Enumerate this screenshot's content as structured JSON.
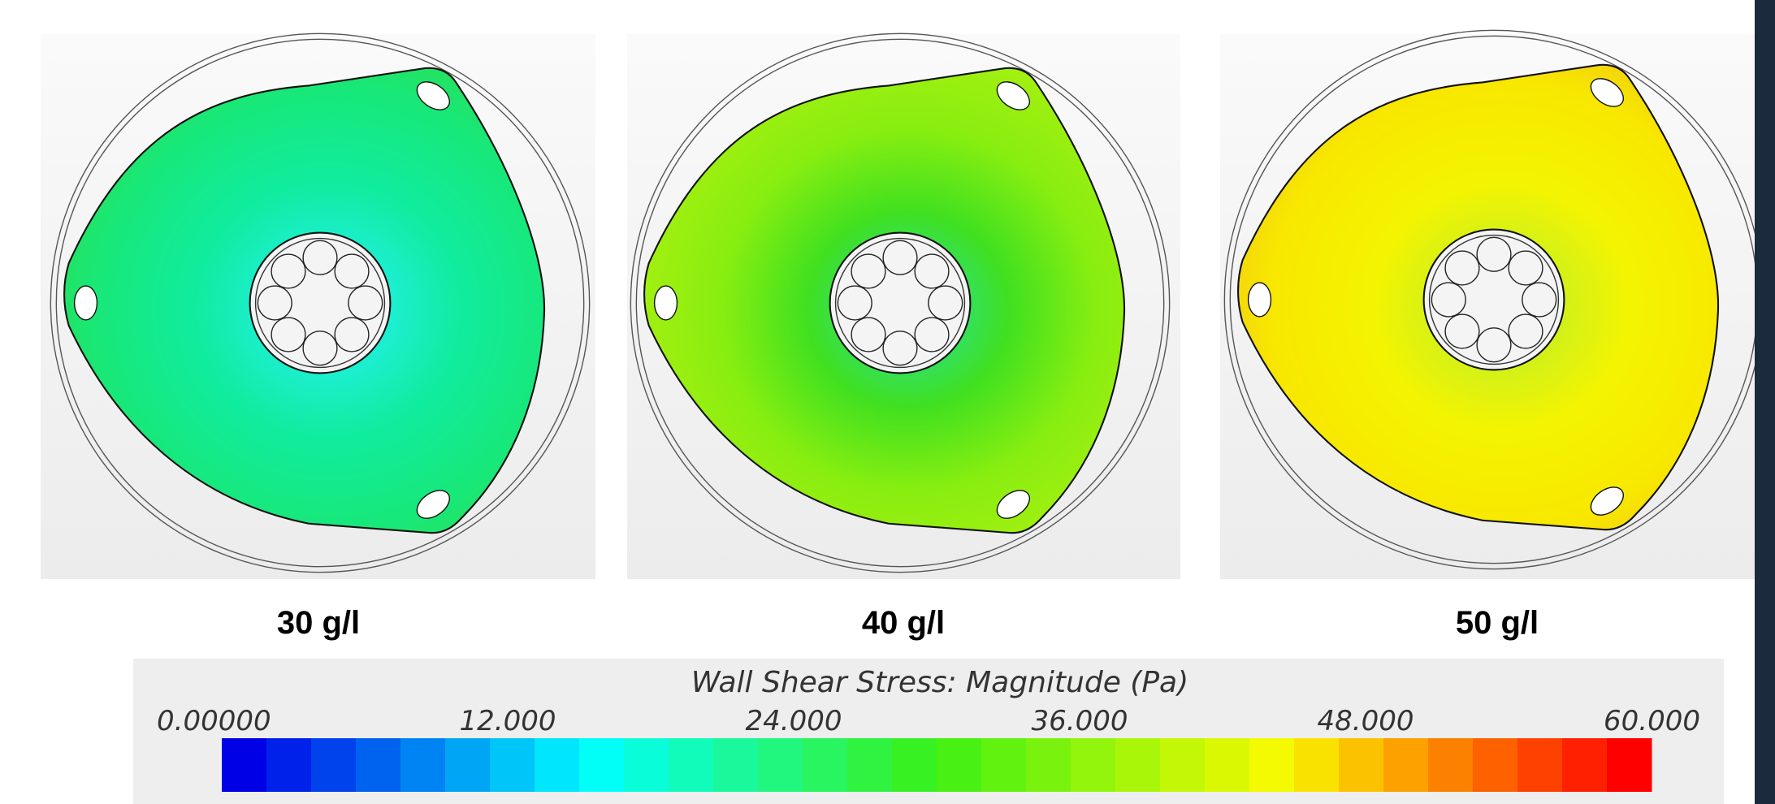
{
  "panels": [
    {
      "label": "30 g/l"
    },
    {
      "label": "40 g/l"
    },
    {
      "label": "50 g/l"
    }
  ],
  "colorbar": {
    "title": "Wall Shear Stress: Magnitude (Pa)",
    "ticks": [
      {
        "value": 0,
        "label": "0.00000"
      },
      {
        "value": 12,
        "label": "12.000"
      },
      {
        "value": 24,
        "label": "24.000"
      },
      {
        "value": 36,
        "label": "36.000"
      },
      {
        "value": 48,
        "label": "48.000"
      },
      {
        "value": 60,
        "label": "60.000"
      }
    ]
  }
}
